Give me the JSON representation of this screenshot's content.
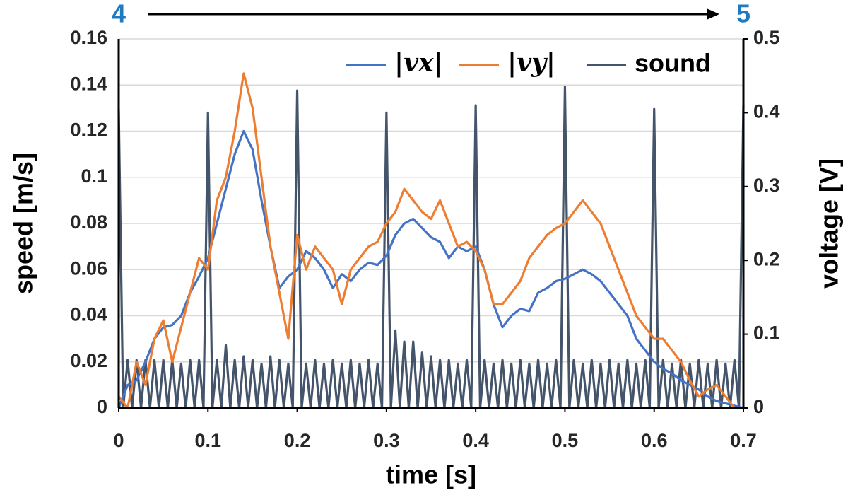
{
  "chart_data": {
    "type": "line",
    "annotations": [
      "4",
      "5"
    ],
    "xlabel": "time [s]",
    "ylabel": "speed [m/s]",
    "y2label": "voltage [V]",
    "xlim": [
      0,
      0.7
    ],
    "xticks": [
      0,
      0.1,
      0.2,
      0.3,
      0.4,
      0.5,
      0.6,
      0.7
    ],
    "ylim": [
      0,
      0.16
    ],
    "yticks": [
      0,
      0.02,
      0.04,
      0.06,
      0.08,
      0.1,
      0.12,
      0.14,
      0.16
    ],
    "y2lim": [
      0,
      0.5
    ],
    "y2ticks": [
      0,
      0.1,
      0.2,
      0.3,
      0.4,
      0.5
    ],
    "grid": true,
    "legend": "top-right",
    "x": [
      0,
      0.01,
      0.02,
      0.03,
      0.04,
      0.05,
      0.06,
      0.07,
      0.08,
      0.09,
      0.1,
      0.11,
      0.12,
      0.13,
      0.14,
      0.15,
      0.16,
      0.17,
      0.18,
      0.19,
      0.2,
      0.21,
      0.22,
      0.23,
      0.24,
      0.25,
      0.26,
      0.27,
      0.28,
      0.29,
      0.3,
      0.31,
      0.32,
      0.33,
      0.34,
      0.35,
      0.36,
      0.37,
      0.38,
      0.39,
      0.4,
      0.41,
      0.42,
      0.43,
      0.44,
      0.45,
      0.46,
      0.47,
      0.48,
      0.49,
      0.5,
      0.51,
      0.52,
      0.53,
      0.54,
      0.55,
      0.56,
      0.57,
      0.58,
      0.59,
      0.6,
      0.61,
      0.62,
      0.63,
      0.64,
      0.65,
      0.66,
      0.67,
      0.68,
      0.69,
      0.7
    ],
    "series": [
      {
        "name": "|vx|",
        "color": "#4472c4",
        "values": [
          0,
          0.01,
          0.012,
          0.02,
          0.03,
          0.035,
          0.036,
          0.04,
          0.05,
          0.057,
          0.065,
          0.08,
          0.095,
          0.11,
          0.12,
          0.112,
          0.09,
          0.07,
          0.052,
          0.057,
          0.06,
          0.068,
          0.065,
          0.06,
          0.052,
          0.058,
          0.055,
          0.06,
          0.063,
          0.062,
          0.066,
          0.075,
          0.08,
          0.082,
          0.078,
          0.074,
          0.072,
          0.065,
          0.07,
          0.068,
          0.07,
          0.06,
          0.045,
          0.035,
          0.04,
          0.043,
          0.042,
          0.05,
          0.052,
          0.055,
          0.056,
          0.058,
          0.06,
          0.058,
          0.055,
          0.05,
          0.045,
          0.04,
          0.03,
          0.025,
          0.02,
          0.017,
          0.015,
          0.012,
          0.01,
          0.008,
          0.005,
          0.003,
          0.002,
          0.001,
          0
        ]
      },
      {
        "name": "|vy|",
        "color": "#ed7d31",
        "values": [
          0.005,
          0,
          0.02,
          0.01,
          0.03,
          0.038,
          0.02,
          0.035,
          0.05,
          0.065,
          0.06,
          0.09,
          0.1,
          0.12,
          0.145,
          0.13,
          0.1,
          0.07,
          0.05,
          0.03,
          0.075,
          0.06,
          0.07,
          0.065,
          0.06,
          0.045,
          0.06,
          0.065,
          0.07,
          0.072,
          0.08,
          0.085,
          0.095,
          0.09,
          0.085,
          0.082,
          0.09,
          0.08,
          0.07,
          0.072,
          0.068,
          0.06,
          0.045,
          0.045,
          0.05,
          0.055,
          0.065,
          0.07,
          0.075,
          0.078,
          0.08,
          0.085,
          0.09,
          0.085,
          0.08,
          0.07,
          0.06,
          0.05,
          0.04,
          0.035,
          0.03,
          0.03,
          0.025,
          0.02,
          0.012,
          0.005,
          0.008,
          0.01,
          0.005,
          0,
          0
        ]
      },
      {
        "name": "sound",
        "color": "#44546a",
        "axis": "y2",
        "x": [
          0,
          0.005,
          0.01,
          0.015,
          0.02,
          0.025,
          0.03,
          0.035,
          0.04,
          0.045,
          0.05,
          0.055,
          0.06,
          0.065,
          0.07,
          0.075,
          0.08,
          0.085,
          0.09,
          0.095,
          0.1,
          0.105,
          0.11,
          0.115,
          0.12,
          0.125,
          0.13,
          0.135,
          0.14,
          0.145,
          0.15,
          0.155,
          0.16,
          0.165,
          0.17,
          0.175,
          0.18,
          0.185,
          0.19,
          0.195,
          0.2,
          0.205,
          0.21,
          0.215,
          0.22,
          0.225,
          0.23,
          0.235,
          0.24,
          0.245,
          0.25,
          0.255,
          0.26,
          0.265,
          0.27,
          0.275,
          0.28,
          0.285,
          0.29,
          0.295,
          0.3,
          0.305,
          0.31,
          0.315,
          0.32,
          0.325,
          0.33,
          0.335,
          0.34,
          0.345,
          0.35,
          0.355,
          0.36,
          0.365,
          0.37,
          0.375,
          0.38,
          0.385,
          0.39,
          0.395,
          0.4,
          0.405,
          0.41,
          0.415,
          0.42,
          0.425,
          0.43,
          0.435,
          0.44,
          0.445,
          0.45,
          0.455,
          0.46,
          0.465,
          0.47,
          0.475,
          0.48,
          0.485,
          0.49,
          0.495,
          0.5,
          0.505,
          0.51,
          0.515,
          0.52,
          0.525,
          0.53,
          0.535,
          0.54,
          0.545,
          0.55,
          0.555,
          0.56,
          0.565,
          0.57,
          0.575,
          0.58,
          0.585,
          0.59,
          0.595,
          0.6,
          0.605,
          0.61,
          0.615,
          0.62,
          0.625,
          0.63,
          0.635,
          0.64,
          0.645,
          0.65,
          0.655,
          0.66,
          0.665,
          0.67,
          0.675,
          0.68,
          0.685,
          0.69,
          0.695,
          0.7
        ],
        "values": [
          0.405,
          0,
          0.065,
          0,
          0.065,
          0,
          0.065,
          0,
          0.065,
          0,
          0.065,
          0,
          0.065,
          0,
          0.06,
          0,
          0.065,
          0,
          0.065,
          0,
          0.4,
          0,
          0.065,
          0,
          0.085,
          0,
          0.065,
          0,
          0.07,
          0,
          0.065,
          0,
          0.06,
          0,
          0.07,
          0,
          0.065,
          0,
          0.06,
          0,
          0.43,
          0,
          0.06,
          0,
          0.065,
          0,
          0.06,
          0,
          0.065,
          0,
          0.06,
          0,
          0.065,
          0,
          0.06,
          0,
          0.065,
          0,
          0.06,
          0,
          0.4,
          0,
          0.105,
          0,
          0.09,
          0,
          0.09,
          0,
          0.075,
          0,
          0.07,
          0,
          0.065,
          0,
          0.065,
          0,
          0.06,
          0,
          0.065,
          0,
          0.41,
          0,
          0.065,
          0,
          0.06,
          0,
          0.065,
          0,
          0.06,
          0,
          0.065,
          0,
          0.06,
          0,
          0.065,
          0,
          0.06,
          0,
          0.065,
          0,
          0.435,
          0,
          0.065,
          0,
          0.06,
          0,
          0.065,
          0,
          0.06,
          0,
          0.065,
          0,
          0.06,
          0,
          0.065,
          0,
          0.06,
          0,
          0.065,
          0,
          0.405,
          0,
          0.065,
          0,
          0.06,
          0,
          0.065,
          0,
          0.06,
          0,
          0.065,
          0,
          0.06,
          0,
          0.065,
          0,
          0.06,
          0,
          0.065,
          0,
          0.41
        ]
      }
    ]
  }
}
